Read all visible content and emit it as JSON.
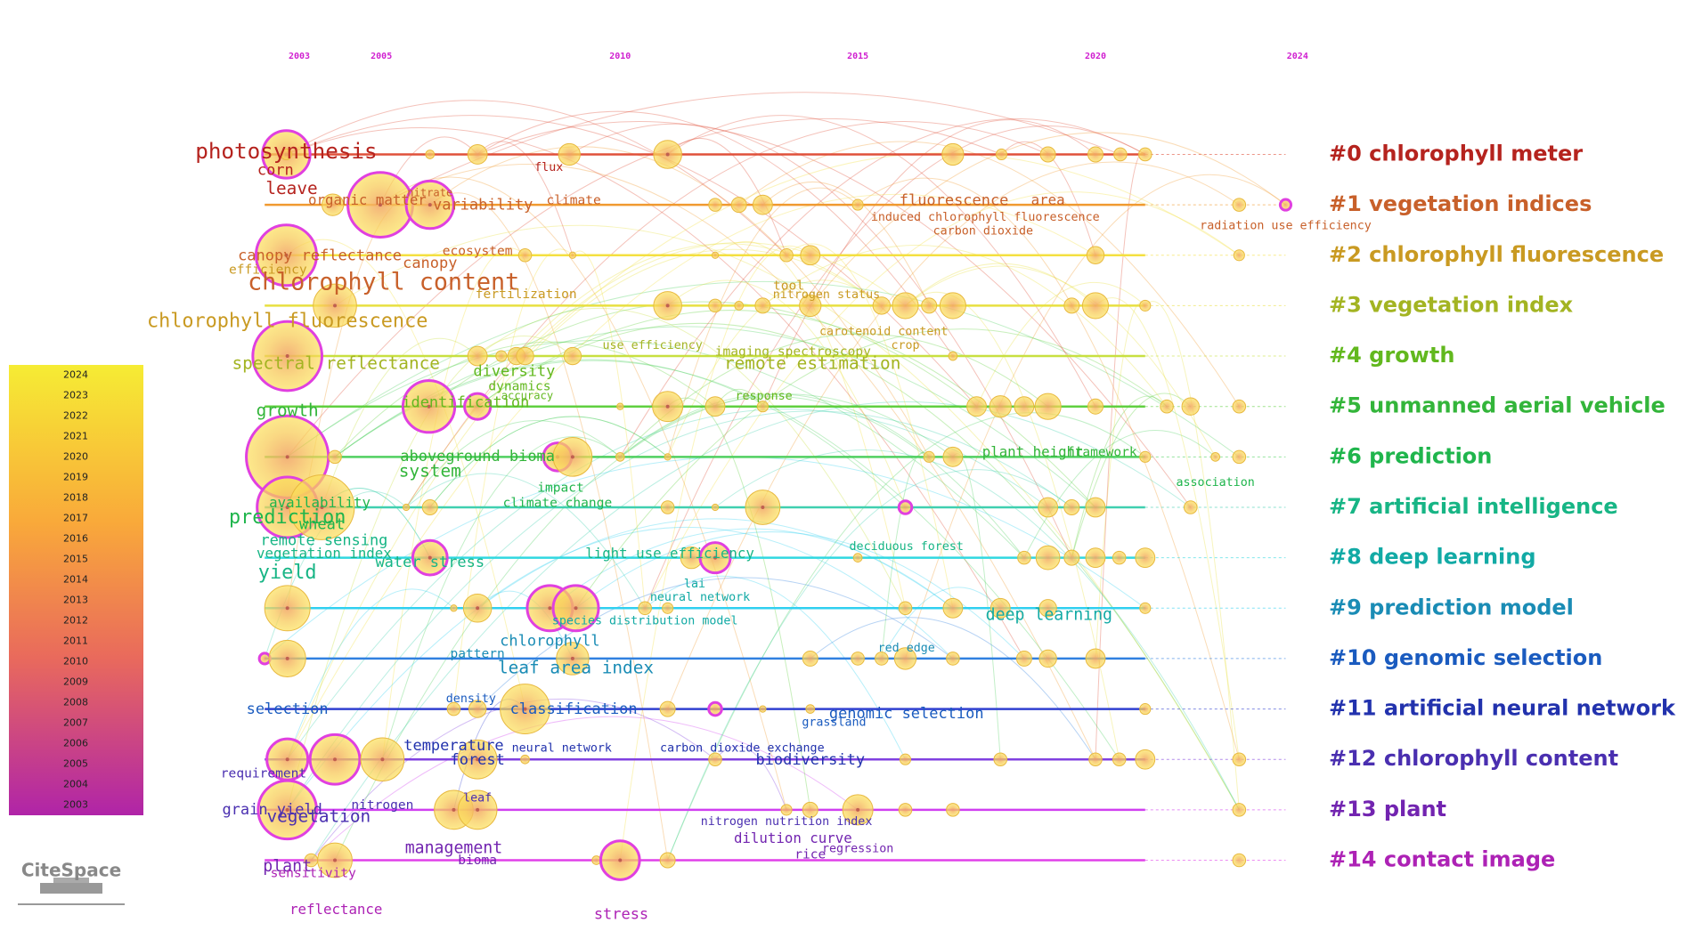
{
  "years": [
    "2003",
    "2005",
    "2010",
    "2015",
    "2020",
    "2024"
  ],
  "clusters": [
    "#0 chlorophyll meter",
    "#1 vegetation indices",
    "#2 chlorophyll fluorescence",
    "#3 vegetation index",
    "#4 growth",
    "#5 unmanned aerial vehicle",
    "#6 prediction",
    "#7 artificial intelligence",
    "#8 deep learning",
    "#9 prediction model",
    "#10 genomic selection",
    "#11 artificial neural network",
    "#12 chlorophyll content",
    "#13 plant",
    "#14 contact image"
  ],
  "keywords": [
    "photosynthesis",
    "corn",
    "leave",
    "organic matter",
    "nitrate",
    "variability",
    "climate",
    "flux",
    "fluorescence",
    "area",
    "induced chlorophyll fluorescence",
    "carbon dioxide",
    "radiation use efficiency",
    "canopy reflectance",
    "canopy",
    "ecosystem",
    "efficiency",
    "chlorophyll content",
    "fertilization",
    "tool",
    "nitrogen status",
    "chlorophyll fluorescence",
    "carotenoid content",
    "crop",
    "use efficiency",
    "imaging spectroscopy",
    "spectral reflectance",
    "remote estimation",
    "diversity",
    "dynamics",
    "accuracy",
    "identification",
    "response",
    "growth",
    "aboveground bioma",
    "system",
    "plant height",
    "framework",
    "association",
    "impact",
    "climate change",
    "availability",
    "prediction",
    "wheat",
    "remote sensing",
    "vegetation index",
    "water stress",
    "light use efficiency",
    "deciduous forest",
    "yield",
    "lai",
    "neural network",
    "species distribution model",
    "deep learning",
    "chlorophyll",
    "pattern",
    "red edge",
    "leaf area index",
    "selection",
    "density",
    "classification",
    "genomic selection",
    "grassland",
    "temperature",
    "forest",
    "neural network",
    "carbon dioxide exchange",
    "biodiversity",
    "requirement",
    "grain yield",
    "vegetation",
    "nitrogen",
    "leaf",
    "nitrogen nutrition index",
    "dilution curve",
    "management",
    "regression",
    "rice",
    "bioma",
    "plant",
    "sensitivity",
    "reflectance",
    "stress"
  ],
  "legend_years": [
    "2024",
    "2023",
    "2022",
    "2021",
    "2020",
    "2019",
    "2018",
    "2017",
    "2016",
    "2015",
    "2014",
    "2013",
    "2012",
    "2011",
    "2010",
    "2009",
    "2008",
    "2007",
    "2006",
    "2005",
    "2004",
    "2003"
  ],
  "logo": "CiteSpace"
}
